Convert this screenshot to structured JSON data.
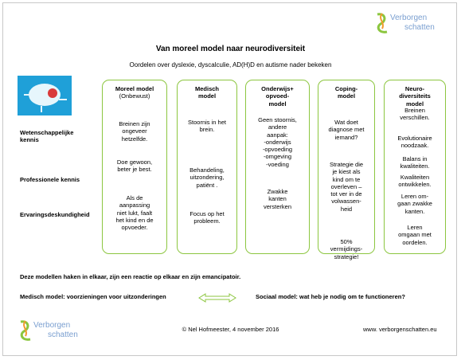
{
  "header": {
    "logo_text": [
      "Verborgen",
      "schatten"
    ],
    "title": "Van moreel model naar neurodiversiteit",
    "subtitle": "Oordelen over dyslexie, dyscalculie, AD(H)D en autisme nader bekeken"
  },
  "row_labels": [
    [
      "Wetenschappelijke",
      "kennis"
    ],
    [
      "Professionele kennis"
    ],
    [
      "Ervaringsdeskundigheid"
    ]
  ],
  "columns": [
    {
      "title": [
        "Moreel model"
      ],
      "subtitle": "(Onbewust)",
      "blocks": [
        [
          "Breinen zijn",
          "ongeveer",
          "hetzelfde."
        ],
        [
          "Doe gewoon,",
          "beter je best."
        ],
        [
          "Als de",
          "aanpassing",
          "niet lukt, faalt",
          "het kind en de",
          "opvoeder."
        ]
      ]
    },
    {
      "title": [
        "Medisch",
        "model"
      ],
      "blocks": [
        [
          "Stoornis in het",
          "brein."
        ],
        [
          "Behandeling,",
          "uitzondering,",
          "patiënt ."
        ],
        [
          "Focus op het",
          "probleem."
        ]
      ]
    },
    {
      "title": [
        "Onderwijs+",
        "opvoed-",
        "model"
      ],
      "blocks": [
        [
          "Geen stoornis,",
          "andere",
          "aanpak:",
          "-onderwijs",
          "-opvoeding",
          "-omgeving",
          "-voeding"
        ],
        [
          "Zwakke",
          "kanten",
          "versterken"
        ]
      ]
    },
    {
      "title": [
        "Coping-",
        "model"
      ],
      "blocks": [
        [
          "Wat doet",
          "diagnose met",
          "iemand?"
        ],
        [
          "Strategie die",
          "je kiest als",
          "kind om te",
          "overleven –",
          "tot ver in de",
          "volwassen-",
          "heid"
        ],
        [
          "50%",
          "vermijdings-",
          "strategie!"
        ]
      ]
    },
    {
      "title": [
        "Neuro-",
        "diversiteits",
        "model"
      ],
      "blocks": [
        [
          "Breinen",
          "verschillen."
        ],
        [
          "Evolutionaire",
          "noodzaak."
        ],
        [
          "Balans in",
          "kwaliteiten."
        ],
        [
          "Kwaliteiten",
          "ontwikkelen."
        ],
        [
          "Leren om-",
          "gaan zwakke",
          "kanten."
        ],
        [
          "Leren",
          "omgaan met",
          "oordelen."
        ]
      ]
    }
  ],
  "notes": {
    "line1": "Deze modellen haken in elkaar, zijn een reactie op elkaar en zijn emancipatoir.",
    "left": "Medisch model: voorzieningen voor uitzonderingen",
    "right": "Sociaal model: wat heb je nodig om te functioneren?"
  },
  "footer": {
    "copyright": "© Nel Hofmeester, 4 november 2016",
    "url": "www. verborgenschatten.eu"
  }
}
